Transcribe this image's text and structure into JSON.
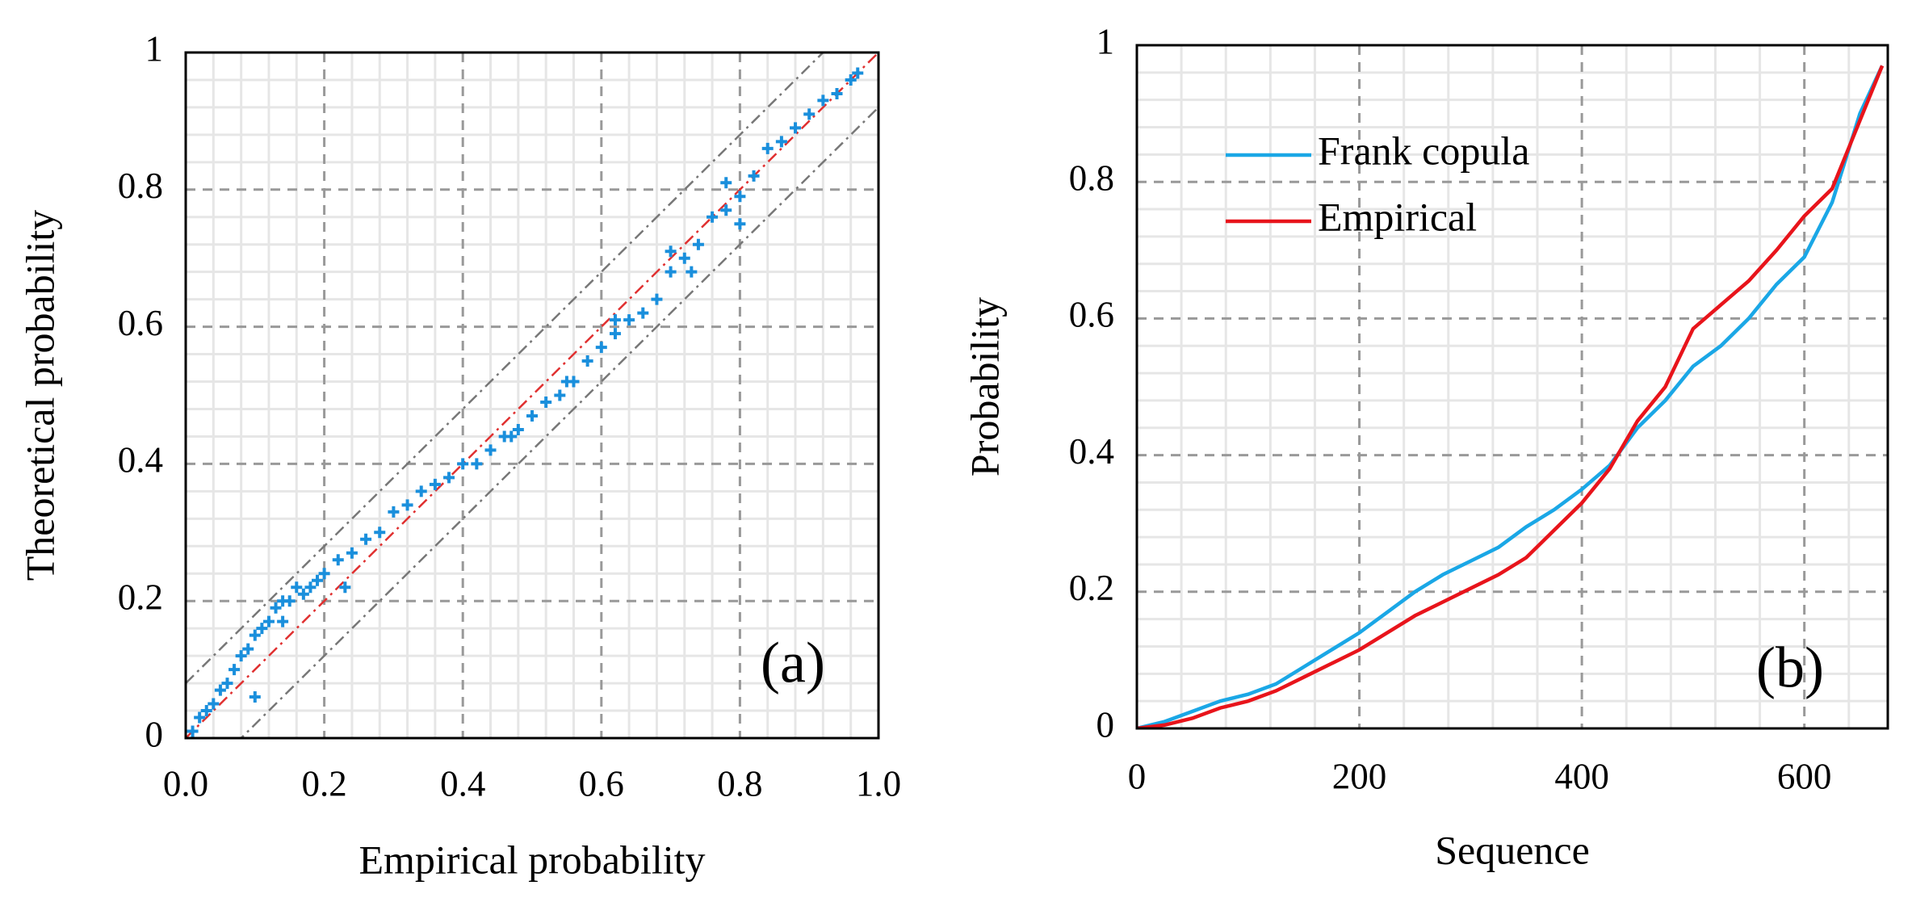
{
  "chart_data": [
    {
      "type": "scatter",
      "annotation": "(a)",
      "x_label": "Empirical probability",
      "y_label": "Theoretical probability",
      "color": "#1a8fdc",
      "marker": "plus",
      "grid": true,
      "minor_grid": true,
      "xlim": [
        0,
        1
      ],
      "ylim": [
        0,
        1
      ],
      "xticks": [
        {
          "value": 0,
          "label": "0.0"
        },
        {
          "value": 0.2,
          "label": "0.2"
        },
        {
          "value": 0.4,
          "label": "0.4"
        },
        {
          "value": 0.6,
          "label": "0.6"
        },
        {
          "value": 0.8,
          "label": "0.8"
        },
        {
          "value": 1,
          "label": "1.0"
        }
      ],
      "yticks": [
        0,
        0.2,
        0.4,
        0.6,
        0.8,
        1
      ],
      "reference_lines": [
        {
          "intercept": 0,
          "color": "#e03030"
        },
        {
          "intercept": 0.08,
          "color": "#777777"
        },
        {
          "intercept": -0.08,
          "color": "#777777"
        }
      ],
      "x": [
        0.01,
        0.02,
        0.03,
        0.04,
        0.05,
        0.06,
        0.07,
        0.08,
        0.09,
        0.1,
        0.11,
        0.12,
        0.13,
        0.14,
        0.15,
        0.16,
        0.17,
        0.18,
        0.19,
        0.2,
        0.22,
        0.24,
        0.26,
        0.28,
        0.3,
        0.32,
        0.34,
        0.36,
        0.38,
        0.4,
        0.42,
        0.44,
        0.46,
        0.48,
        0.5,
        0.52,
        0.54,
        0.56,
        0.58,
        0.6,
        0.62,
        0.64,
        0.66,
        0.68,
        0.7,
        0.72,
        0.74,
        0.76,
        0.78,
        0.8,
        0.82,
        0.84,
        0.86,
        0.88,
        0.9,
        0.92,
        0.94,
        0.96,
        0.97,
        0.1,
        0.14,
        0.23,
        0.47,
        0.55,
        0.62,
        0.7,
        0.73,
        0.78,
        0.8
      ],
      "values": [
        0.01,
        0.03,
        0.04,
        0.05,
        0.07,
        0.08,
        0.1,
        0.12,
        0.13,
        0.15,
        0.16,
        0.17,
        0.19,
        0.2,
        0.2,
        0.22,
        0.21,
        0.22,
        0.23,
        0.24,
        0.26,
        0.27,
        0.29,
        0.3,
        0.33,
        0.34,
        0.36,
        0.37,
        0.38,
        0.4,
        0.4,
        0.42,
        0.44,
        0.45,
        0.47,
        0.49,
        0.5,
        0.52,
        0.55,
        0.57,
        0.59,
        0.61,
        0.62,
        0.64,
        0.68,
        0.7,
        0.72,
        0.76,
        0.77,
        0.79,
        0.82,
        0.86,
        0.87,
        0.89,
        0.91,
        0.93,
        0.94,
        0.96,
        0.97,
        0.06,
        0.17,
        0.22,
        0.44,
        0.52,
        0.61,
        0.71,
        0.68,
        0.81,
        0.75
      ]
    },
    {
      "type": "line",
      "annotation": "(b)",
      "x_label": "Sequence",
      "y_label": "Probability",
      "grid": true,
      "minor_grid": true,
      "legend": "upper left",
      "xlim": [
        0,
        675
      ],
      "ylim": [
        0,
        1
      ],
      "xticks": [
        0,
        200,
        400,
        600
      ],
      "yticks": [
        0,
        0.2,
        0.4,
        0.6,
        0.8,
        1
      ],
      "x": [
        0,
        25,
        50,
        75,
        100,
        125,
        150,
        175,
        200,
        225,
        250,
        275,
        300,
        325,
        350,
        375,
        400,
        425,
        450,
        475,
        500,
        525,
        550,
        575,
        600,
        625,
        650,
        670
      ],
      "series": [
        {
          "name": "Frank copula",
          "color": "#1aa7e6",
          "values": [
            0,
            0.01,
            0.025,
            0.04,
            0.05,
            0.065,
            0.09,
            0.115,
            0.14,
            0.17,
            0.2,
            0.225,
            0.245,
            0.265,
            0.295,
            0.32,
            0.35,
            0.385,
            0.44,
            0.48,
            0.53,
            0.56,
            0.6,
            0.65,
            0.69,
            0.77,
            0.9,
            0.97
          ]
        },
        {
          "name": "Empirical",
          "color": "#e8141b",
          "values": [
            0,
            0.005,
            0.015,
            0.03,
            0.04,
            0.055,
            0.075,
            0.095,
            0.115,
            0.14,
            0.165,
            0.185,
            0.205,
            0.225,
            0.25,
            0.29,
            0.33,
            0.38,
            0.45,
            0.5,
            0.585,
            0.62,
            0.655,
            0.7,
            0.75,
            0.79,
            0.89,
            0.97
          ]
        }
      ]
    }
  ]
}
